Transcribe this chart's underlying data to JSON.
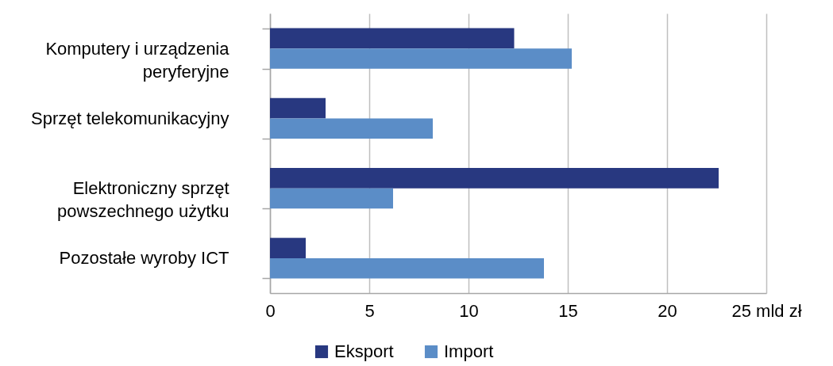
{
  "chart_data": {
    "type": "bar",
    "orientation": "horizontal",
    "categories": [
      "Komputery i urządzenia peryferyjne",
      "Sprzęt telekomunikacyjny",
      "Elektroniczny sprzęt powszechnego użytku",
      "Pozostałe wyroby ICT"
    ],
    "series": [
      {
        "name": "Eksport",
        "color": "#283880",
        "values": [
          12.3,
          2.8,
          22.6,
          1.8
        ]
      },
      {
        "name": "Import",
        "color": "#5b8dc7",
        "values": [
          15.2,
          8.2,
          6.2,
          13.8
        ]
      }
    ],
    "xlim": [
      0,
      25
    ],
    "xticks": [
      0,
      5,
      10,
      15,
      20,
      {
        "value": 25,
        "label": "25 mld zł"
      }
    ],
    "grid": "x",
    "legend": "bottom"
  }
}
